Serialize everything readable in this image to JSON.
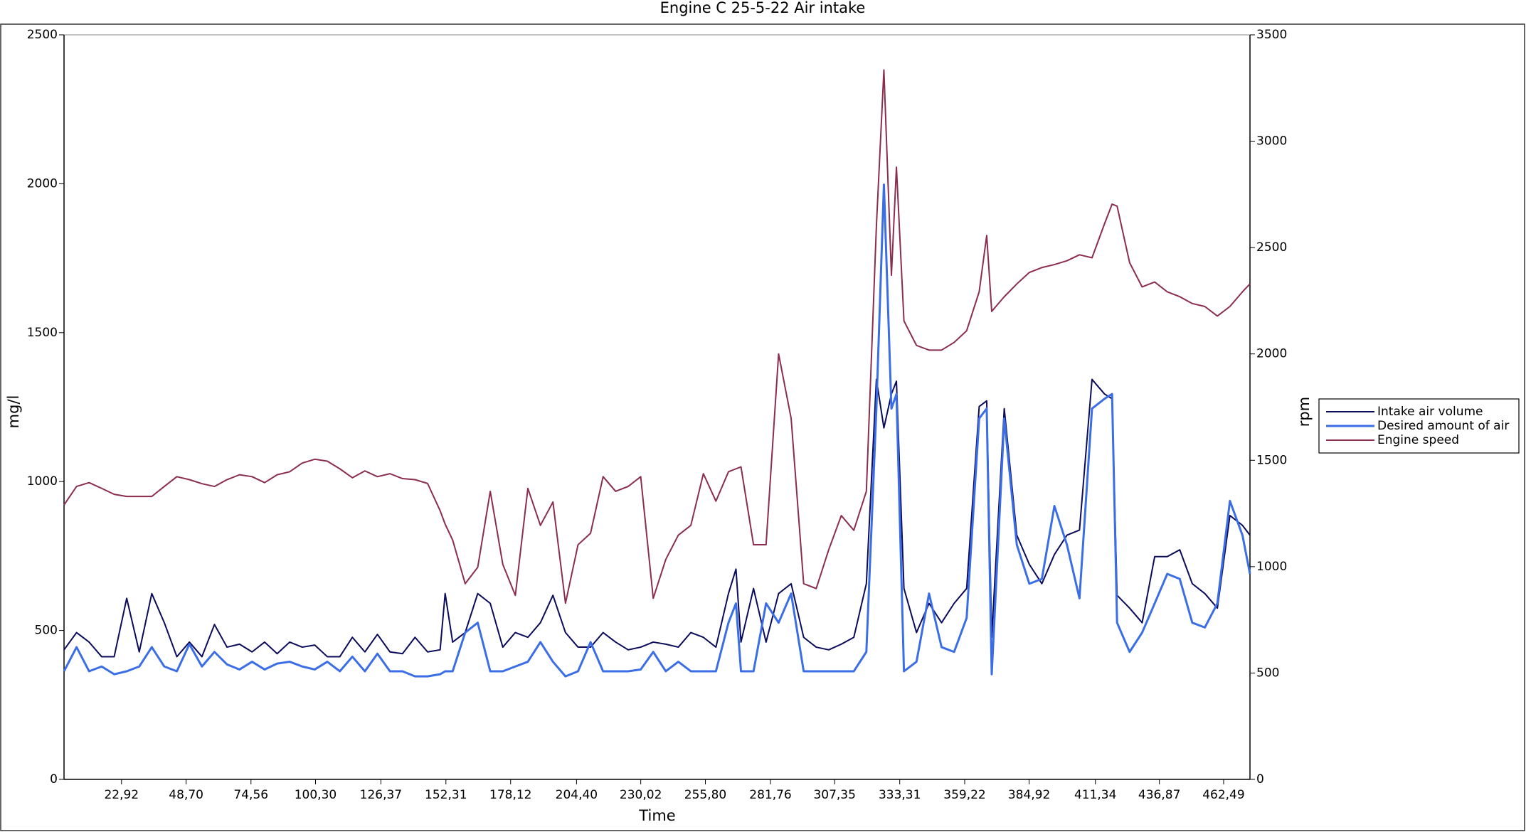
{
  "chart_data": {
    "type": "line",
    "title": "Engine C 25-5-22 Air intake",
    "xlabel": "Time",
    "ylabel": "mg/l",
    "y2label": "rpm",
    "xlim": [
      0,
      473
    ],
    "xticks": [
      {
        "value": 22.92,
        "label": "22,92"
      },
      {
        "value": 48.7,
        "label": "48,70"
      },
      {
        "value": 74.56,
        "label": "74,56"
      },
      {
        "value": 100.3,
        "label": "100,30"
      },
      {
        "value": 126.37,
        "label": "126,37"
      },
      {
        "value": 152.31,
        "label": "152,31"
      },
      {
        "value": 178.12,
        "label": "178,12"
      },
      {
        "value": 204.4,
        "label": "204,40"
      },
      {
        "value": 230.02,
        "label": "230,02"
      },
      {
        "value": 255.8,
        "label": "255,80"
      },
      {
        "value": 281.76,
        "label": "281,76"
      },
      {
        "value": 307.35,
        "label": "307,35"
      },
      {
        "value": 333.31,
        "label": "333,31"
      },
      {
        "value": 359.22,
        "label": "359,22"
      },
      {
        "value": 384.92,
        "label": "384,92"
      },
      {
        "value": 411.34,
        "label": "411,34"
      },
      {
        "value": 436.87,
        "label": "436,87"
      },
      {
        "value": 462.49,
        "label": "462,49"
      }
    ],
    "ylim": [
      0,
      2500
    ],
    "yticks": [
      0,
      500,
      1000,
      1500,
      2000,
      2500
    ],
    "y2lim": [
      0,
      3500
    ],
    "y2ticks": [
      0,
      500,
      1000,
      1500,
      2000,
      2500,
      3000,
      3500
    ],
    "legend": "right",
    "x": [
      0,
      5,
      10,
      15,
      20,
      25,
      30,
      35,
      40,
      45,
      50,
      55,
      60,
      65,
      70,
      75,
      80,
      85,
      90,
      95,
      100,
      105,
      110,
      115,
      120,
      125,
      130,
      135,
      140,
      145,
      150,
      152,
      155,
      160,
      165,
      170,
      175,
      180,
      185,
      190,
      195,
      200,
      205,
      210,
      215,
      220,
      225,
      230,
      235,
      240,
      245,
      250,
      255,
      260,
      265,
      268,
      270,
      275,
      280,
      285,
      290,
      295,
      300,
      305,
      310,
      315,
      320,
      324,
      327,
      330,
      332,
      335,
      340,
      345,
      350,
      355,
      360,
      365,
      368,
      370,
      375,
      380,
      385,
      390,
      395,
      400,
      405,
      410,
      415,
      418,
      420,
      425,
      430,
      435,
      440,
      445,
      450,
      455,
      460,
      465,
      470,
      473
    ],
    "series": [
      {
        "name": "Intake air volume",
        "color": "#0b0b5c",
        "width": 2,
        "values": [
          435,
          493,
          461,
          412,
          412,
          608,
          428,
          624,
          526,
          412,
          461,
          412,
          520,
          444,
          454,
          428,
          461,
          422,
          461,
          444,
          451,
          412,
          412,
          477,
          428,
          487,
          428,
          422,
          477,
          428,
          435,
          624,
          461,
          493,
          624,
          591,
          444,
          493,
          477,
          526,
          618,
          493,
          444,
          444,
          493,
          461,
          435,
          444,
          461,
          454,
          444,
          493,
          477,
          444,
          624,
          706,
          461,
          641,
          461,
          624,
          657,
          477,
          444,
          435,
          454,
          477,
          657,
          1343,
          1180,
          1294,
          1337,
          641,
          493,
          591,
          526,
          591,
          641,
          1252,
          1271,
          477,
          1245,
          820,
          722,
          657,
          755,
          820,
          837,
          1343,
          1294,
          1278,
          618,
          575,
          526,
          748,
          748,
          771,
          657,
          624,
          575,
          886,
          853,
          820
        ]
      },
      {
        "name": "Desired amount of air",
        "color": "#3b6ee6",
        "width": 3,
        "values": [
          363,
          444,
          363,
          379,
          353,
          363,
          379,
          444,
          379,
          363,
          454,
          379,
          428,
          386,
          369,
          395,
          369,
          389,
          395,
          379,
          369,
          395,
          363,
          412,
          363,
          422,
          363,
          363,
          346,
          346,
          353,
          363,
          363,
          493,
          526,
          363,
          363,
          379,
          395,
          461,
          395,
          346,
          363,
          461,
          363,
          363,
          363,
          369,
          428,
          363,
          395,
          363,
          363,
          363,
          526,
          591,
          363,
          363,
          591,
          526,
          624,
          363,
          363,
          363,
          363,
          363,
          428,
          1245,
          1997,
          1245,
          1294,
          363,
          395,
          624,
          444,
          428,
          542,
          1212,
          1245,
          353,
          1212,
          788,
          657,
          673,
          918,
          788,
          608,
          1245,
          1278,
          1294,
          526,
          428,
          493,
          591,
          690,
          673,
          526,
          510,
          591,
          935,
          820,
          690
        ]
      },
      {
        "name": "Engine speed",
        "color": "#8b2d4e",
        "width": 2,
        "axis": "y2",
        "values": [
          1290,
          1377,
          1395,
          1368,
          1340,
          1330,
          1330,
          1330,
          1377,
          1423,
          1409,
          1390,
          1377,
          1409,
          1432,
          1423,
          1395,
          1432,
          1446,
          1487,
          1505,
          1496,
          1460,
          1418,
          1450,
          1423,
          1437,
          1414,
          1409,
          1391,
          1263,
          1200,
          1125,
          920,
          997,
          1354,
          1011,
          865,
          1368,
          1194,
          1304,
          828,
          1103,
          1157,
          1423,
          1354,
          1377,
          1423,
          851,
          1034,
          1148,
          1194,
          1437,
          1308,
          1446,
          1460,
          1469,
          1103,
          1103,
          2000,
          1697,
          920,
          897,
          1080,
          1240,
          1171,
          1354,
          2600,
          3335,
          2370,
          2878,
          2155,
          2040,
          2018,
          2018,
          2054,
          2109,
          2292,
          2557,
          2200,
          2269,
          2329,
          2383,
          2406,
          2420,
          2438,
          2466,
          2452,
          2612,
          2704,
          2695,
          2429,
          2315,
          2338,
          2292,
          2269,
          2237,
          2223,
          2178,
          2223,
          2292,
          2329
        ]
      }
    ]
  }
}
